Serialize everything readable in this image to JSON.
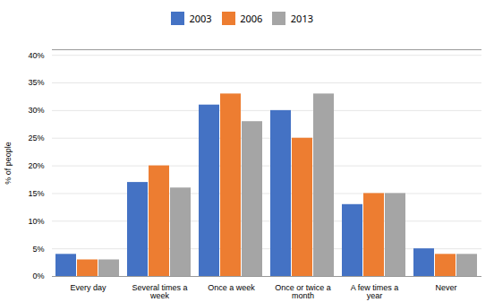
{
  "chart_data": {
    "type": "bar",
    "categories": [
      "Every day",
      "Several times a\nweek",
      "Once a week",
      "Once or twice a\nmonth",
      "A few times a\nyear",
      "Never"
    ],
    "series": [
      {
        "name": "2003",
        "color": "#4472C4",
        "values": [
          4,
          17,
          31,
          30,
          13,
          5
        ]
      },
      {
        "name": "2006",
        "color": "#ED7D31",
        "values": [
          3,
          20,
          33,
          25,
          15,
          4
        ]
      },
      {
        "name": "2013",
        "color": "#A5A5A5",
        "values": [
          3,
          16,
          28,
          33,
          15,
          4
        ]
      }
    ],
    "ylabel": "% of people",
    "ylim": [
      0,
      41
    ],
    "yticks": [
      {
        "value": 0,
        "label": "0%"
      },
      {
        "value": 5,
        "label": "5%"
      },
      {
        "value": 10,
        "label": "10%"
      },
      {
        "value": 15,
        "label": "15%"
      },
      {
        "value": 20,
        "label": "20%"
      },
      {
        "value": 25,
        "label": "25%"
      },
      {
        "value": 30,
        "label": "30%"
      },
      {
        "value": 35,
        "label": "35%"
      },
      {
        "value": 40,
        "label": "40%"
      }
    ],
    "grid": true,
    "legend": "upper center"
  }
}
